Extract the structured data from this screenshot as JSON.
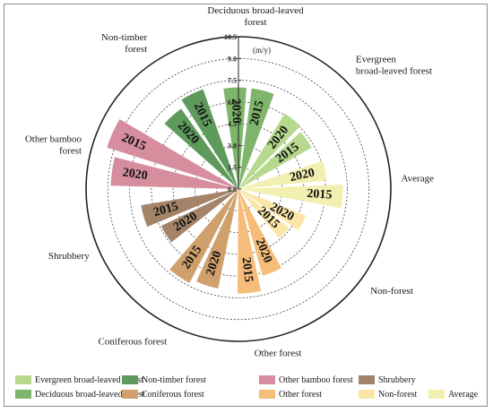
{
  "chart_data": {
    "type": "polar-bar",
    "unit": "(m/y)",
    "rmax": 10.5,
    "ticks": [
      "0.0",
      "1.5",
      "3.0",
      "4.5",
      "6.0",
      "7.5",
      "9.0",
      "10.5"
    ],
    "categories": [
      {
        "name": "Deciduous broad-leaved forest",
        "color": "#7fb56a",
        "bars": [
          {
            "year": "2020",
            "value": 7.0
          },
          {
            "year": "2015",
            "value": 7.0
          }
        ]
      },
      {
        "name": "Evergreen broad-leaved forest",
        "color": "#b6d98e",
        "bars": [
          {
            "year": "2020",
            "value": 6.1
          },
          {
            "year": "2015",
            "value": 5.8
          }
        ]
      },
      {
        "name": "Average",
        "color": "#f1f0b0",
        "bars": [
          {
            "year": "2020",
            "value": 6.1
          },
          {
            "year": "2015",
            "value": 7.2
          }
        ]
      },
      {
        "name": "Non-forest",
        "color": "#fbe6a8",
        "bars": [
          {
            "year": "2020",
            "value": 5.0
          },
          {
            "year": "2015",
            "value": 4.4
          }
        ]
      },
      {
        "name": "Other forest",
        "color": "#f6bd7a",
        "bars": [
          {
            "year": "2020",
            "value": 6.2
          },
          {
            "year": "2015",
            "value": 7.2
          }
        ]
      },
      {
        "name": "Coniferous forest",
        "color": "#d0a06c",
        "bars": [
          {
            "year": "2020",
            "value": 7.0
          },
          {
            "year": "2015",
            "value": 7.3
          }
        ]
      },
      {
        "name": "Shrubbery",
        "color": "#a38469",
        "bars": [
          {
            "year": "2020",
            "value": 5.9
          },
          {
            "year": "2015",
            "value": 6.8
          }
        ]
      },
      {
        "name": "Other bamboo forest",
        "color": "#d68e9e",
        "bars": [
          {
            "year": "2020",
            "value": 8.8
          },
          {
            "year": "2015",
            "value": 9.5
          }
        ]
      },
      {
        "name": "Non-timber forest",
        "color": "#5e9a5c",
        "bars": [
          {
            "year": "2020",
            "value": 6.8
          },
          {
            "year": "2015",
            "value": 7.3
          }
        ]
      }
    ],
    "legend": [
      {
        "label": "Evergreen broad-leaved forest",
        "color": "#b6d98e"
      },
      {
        "label": "Non-timber forest",
        "color": "#5e9a5c"
      },
      {
        "label": "Other bamboo forest",
        "color": "#d68e9e"
      },
      {
        "label": "Shrubbery",
        "color": "#a38469"
      },
      {
        "label": "Deciduous broad-leaved forest",
        "color": "#7fb56a"
      },
      {
        "label": "Coniferous forest",
        "color": "#d0a06c"
      },
      {
        "label": "Other forest",
        "color": "#f6bd7a"
      },
      {
        "label": "Non-forest",
        "color": "#fbe6a8"
      },
      {
        "label": "Average",
        "color": "#f1f0b0"
      }
    ]
  }
}
